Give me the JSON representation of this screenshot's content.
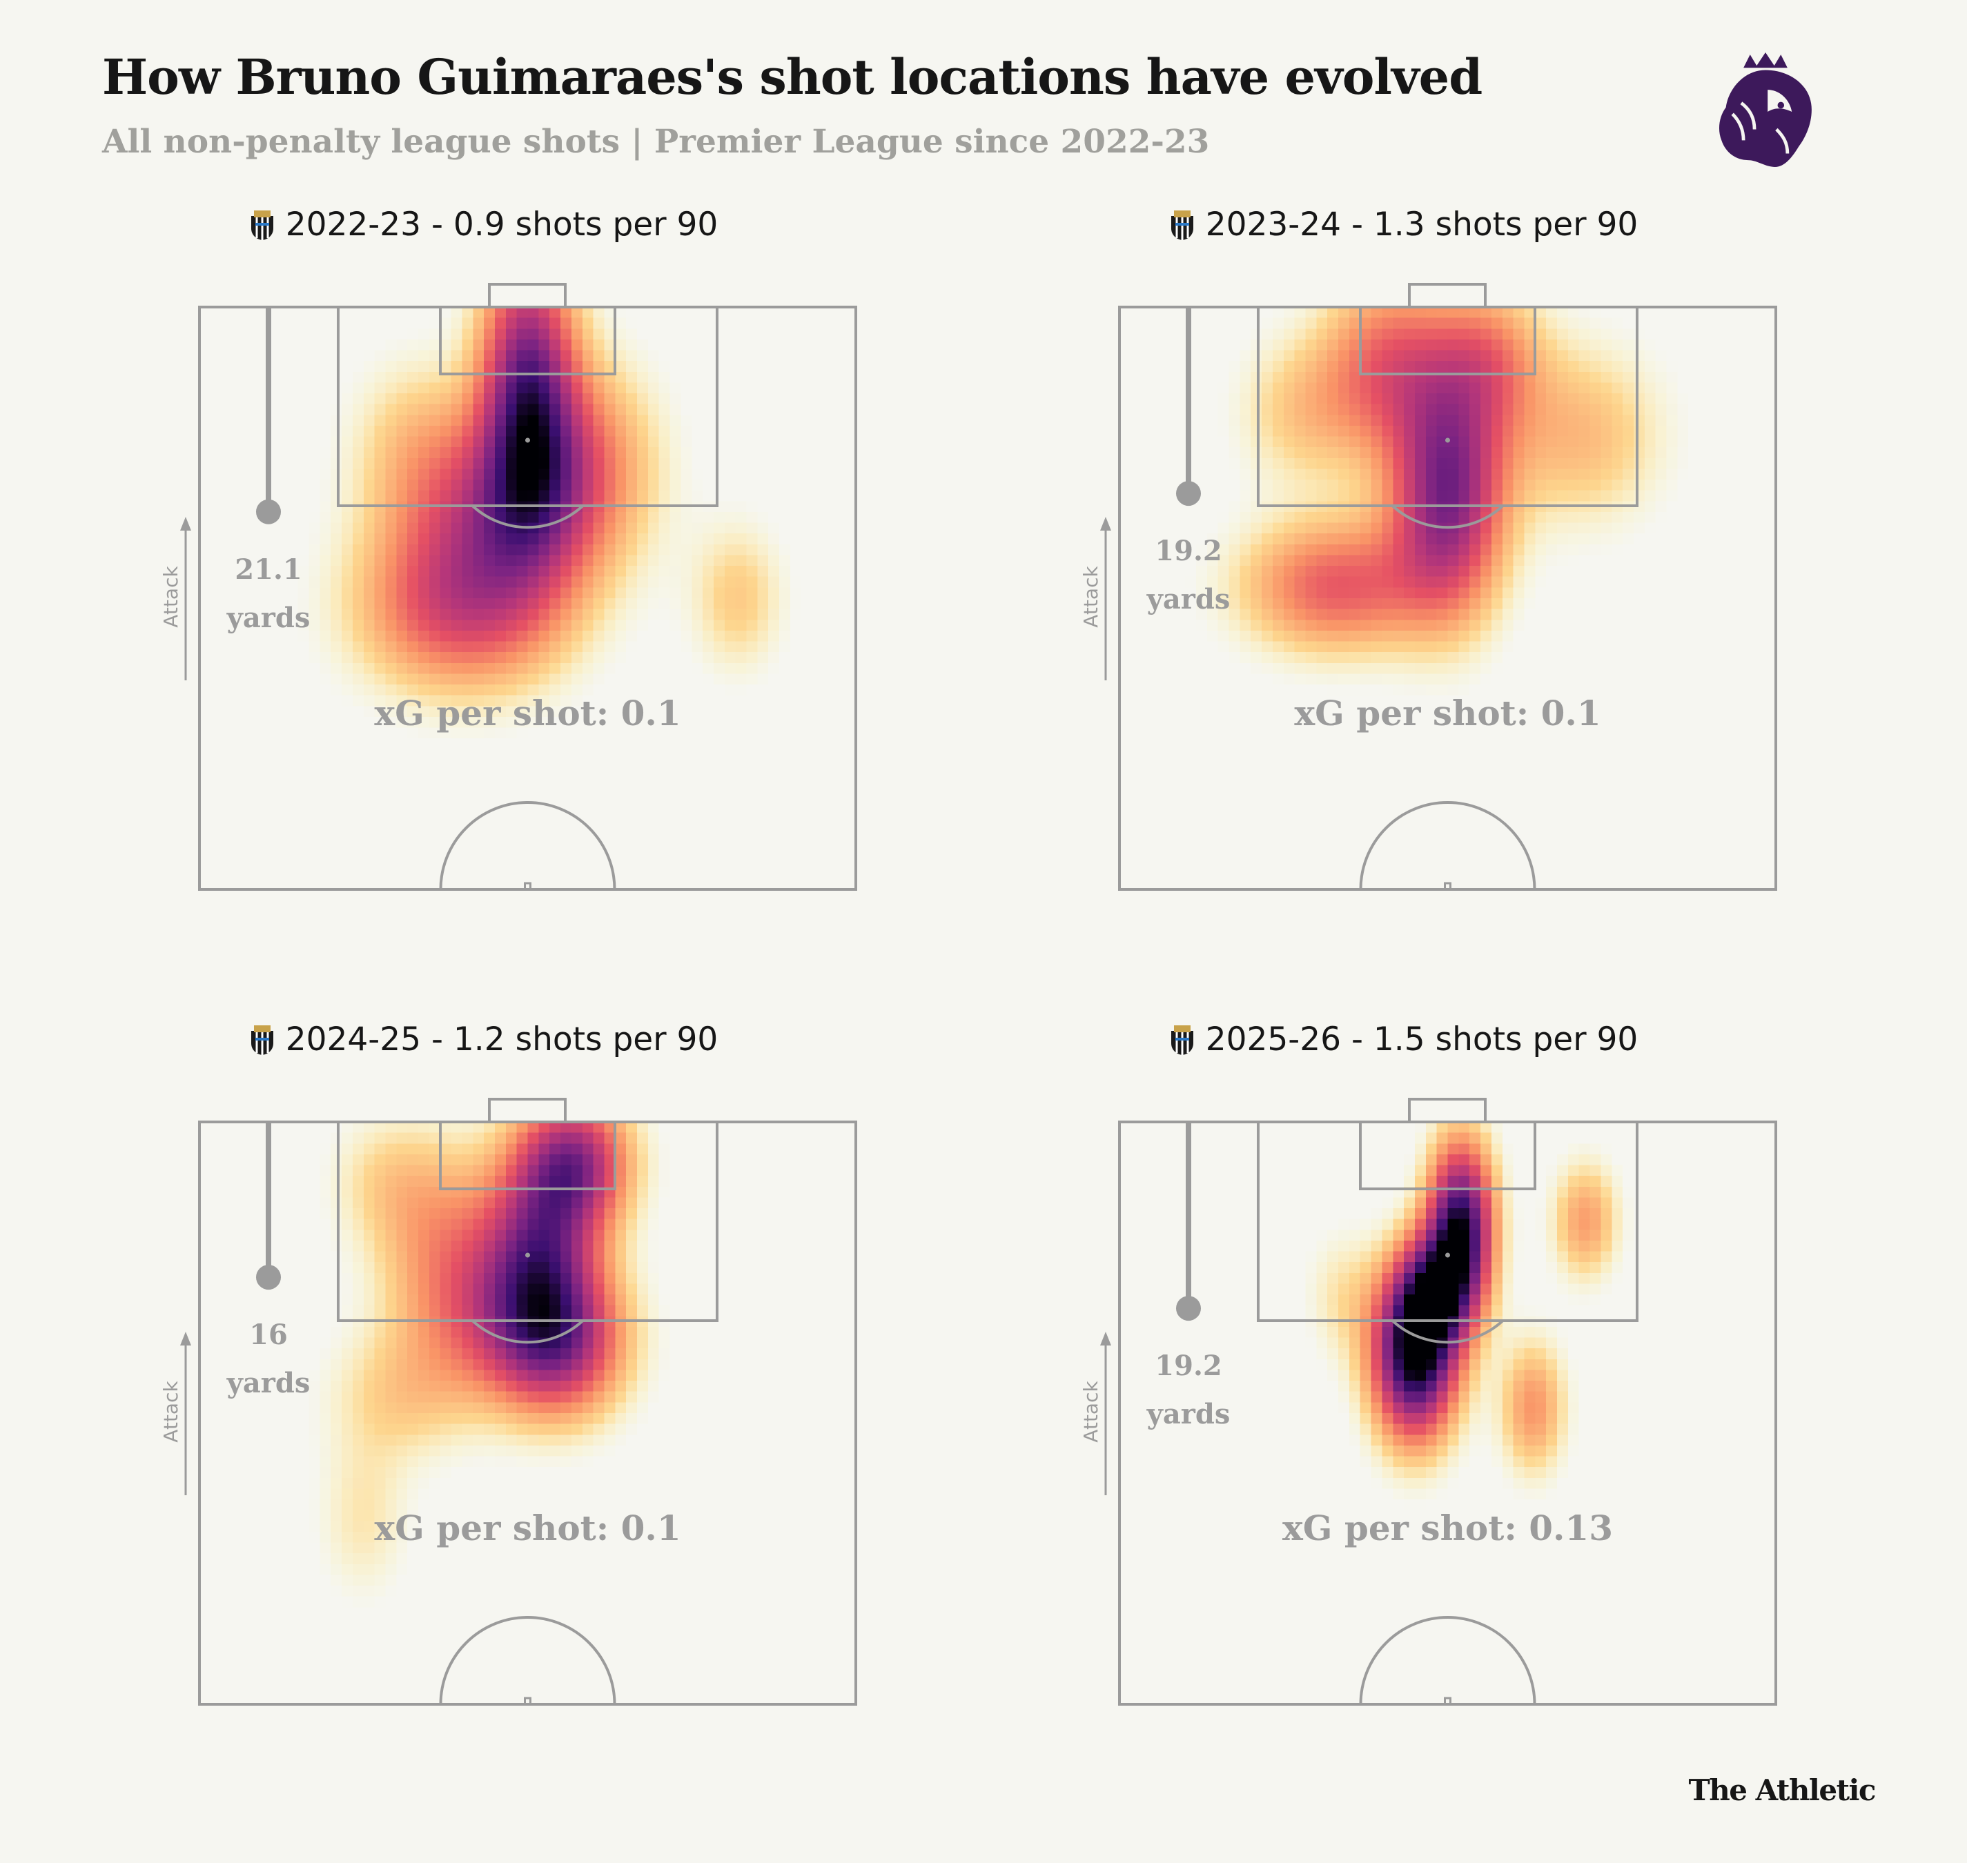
{
  "header": {
    "title": "How Bruno Guimaraes's shot locations have evolved",
    "subtitle": "All non-penalty league shots | Premier League since 2022-23"
  },
  "footer": {
    "credit": "The Athletic"
  },
  "logo": {
    "icon": "premier-league-lion-icon",
    "color": "#3d195b"
  },
  "club_icon": "newcastle-crest-icon",
  "colors": {
    "background": "#f6f6f1",
    "pitch_lines": "#9b9b9b",
    "annotation": "#9b9b9b",
    "colormap": [
      "#f6f6f1",
      "#fcfbb8",
      "#fdd28b",
      "#f99467",
      "#e55064",
      "#b5367a",
      "#7b2382",
      "#3b0f70",
      "#000004"
    ]
  },
  "chart_data": [
    {
      "type": "heatmap",
      "season": "2022-23",
      "title": "2022-23 - 0.9 shots per 90",
      "shots_per_90": 0.9,
      "avg_shot_distance_value": "21.1",
      "avg_shot_distance_unit": "yards",
      "xg_label": "xG per shot: 0.1",
      "xg_per_shot": 0.1,
      "attack_label": "Attack",
      "density_blobs": [
        {
          "x": 0.5,
          "y": 0.14,
          "sx": 0.05,
          "sy": 0.17,
          "w": 0.72
        },
        {
          "x": 0.46,
          "y": 0.35,
          "sx": 0.11,
          "sy": 0.11,
          "w": 0.45
        },
        {
          "x": 0.4,
          "y": 0.52,
          "sx": 0.11,
          "sy": 0.1,
          "w": 0.45
        },
        {
          "x": 0.58,
          "y": 0.25,
          "sx": 0.08,
          "sy": 0.12,
          "w": 0.28
        },
        {
          "x": 0.33,
          "y": 0.22,
          "sx": 0.07,
          "sy": 0.1,
          "w": 0.14
        },
        {
          "x": 0.82,
          "y": 0.5,
          "sx": 0.05,
          "sy": 0.09,
          "w": 0.18
        }
      ]
    },
    {
      "type": "heatmap",
      "season": "2023-24",
      "title": "2023-24 - 1.3 shots per 90",
      "shots_per_90": 1.3,
      "avg_shot_distance_value": "19.2",
      "avg_shot_distance_unit": "yards",
      "xg_label": "xG per shot: 0.1",
      "xg_per_shot": 0.1,
      "attack_label": "Attack",
      "density_blobs": [
        {
          "x": 0.5,
          "y": 0.32,
          "sx": 0.06,
          "sy": 0.14,
          "w": 0.7
        },
        {
          "x": 0.41,
          "y": 0.1,
          "sx": 0.07,
          "sy": 0.11,
          "w": 0.38
        },
        {
          "x": 0.56,
          "y": 0.09,
          "sx": 0.06,
          "sy": 0.09,
          "w": 0.3
        },
        {
          "x": 0.33,
          "y": 0.48,
          "sx": 0.1,
          "sy": 0.08,
          "w": 0.42
        },
        {
          "x": 0.7,
          "y": 0.22,
          "sx": 0.09,
          "sy": 0.11,
          "w": 0.22
        },
        {
          "x": 0.28,
          "y": 0.18,
          "sx": 0.07,
          "sy": 0.09,
          "w": 0.18
        }
      ]
    },
    {
      "type": "heatmap",
      "season": "2024-25",
      "title": "2024-25 - 1.2 shots per 90",
      "shots_per_90": 1.2,
      "avg_shot_distance_value": "16",
      "avg_shot_distance_unit": "yards",
      "xg_label": "xG per shot: 0.1",
      "xg_per_shot": 0.1,
      "attack_label": "Attack",
      "density_blobs": [
        {
          "x": 0.57,
          "y": 0.07,
          "sx": 0.06,
          "sy": 0.08,
          "w": 0.62
        },
        {
          "x": 0.52,
          "y": 0.22,
          "sx": 0.06,
          "sy": 0.11,
          "w": 0.55
        },
        {
          "x": 0.55,
          "y": 0.38,
          "sx": 0.07,
          "sy": 0.09,
          "w": 0.55
        },
        {
          "x": 0.44,
          "y": 0.33,
          "sx": 0.09,
          "sy": 0.1,
          "w": 0.32
        },
        {
          "x": 0.37,
          "y": 0.18,
          "sx": 0.07,
          "sy": 0.11,
          "w": 0.22
        },
        {
          "x": 0.28,
          "y": 0.1,
          "sx": 0.06,
          "sy": 0.08,
          "w": 0.12
        },
        {
          "x": 0.25,
          "y": 0.68,
          "sx": 0.05,
          "sy": 0.1,
          "w": 0.12
        },
        {
          "x": 0.31,
          "y": 0.47,
          "sx": 0.08,
          "sy": 0.08,
          "w": 0.16
        }
      ]
    },
    {
      "type": "heatmap",
      "season": "2025-26",
      "title": "2025-26 - 1.5 shots per 90",
      "shots_per_90": 1.5,
      "avg_shot_distance_value": "19.2",
      "avg_shot_distance_unit": "yards",
      "xg_label": "xG per shot: 0.13",
      "xg_per_shot": 0.13,
      "attack_label": "Attack",
      "density_blobs": [
        {
          "x": 0.52,
          "y": 0.18,
          "sx": 0.035,
          "sy": 0.1,
          "w": 0.9
        },
        {
          "x": 0.45,
          "y": 0.4,
          "sx": 0.045,
          "sy": 0.1,
          "w": 1.0
        },
        {
          "x": 0.48,
          "y": 0.29,
          "sx": 0.04,
          "sy": 0.07,
          "w": 0.55
        },
        {
          "x": 0.71,
          "y": 0.17,
          "sx": 0.035,
          "sy": 0.07,
          "w": 0.28
        },
        {
          "x": 0.63,
          "y": 0.49,
          "sx": 0.035,
          "sy": 0.08,
          "w": 0.3
        },
        {
          "x": 0.34,
          "y": 0.3,
          "sx": 0.04,
          "sy": 0.08,
          "w": 0.12
        }
      ]
    }
  ]
}
